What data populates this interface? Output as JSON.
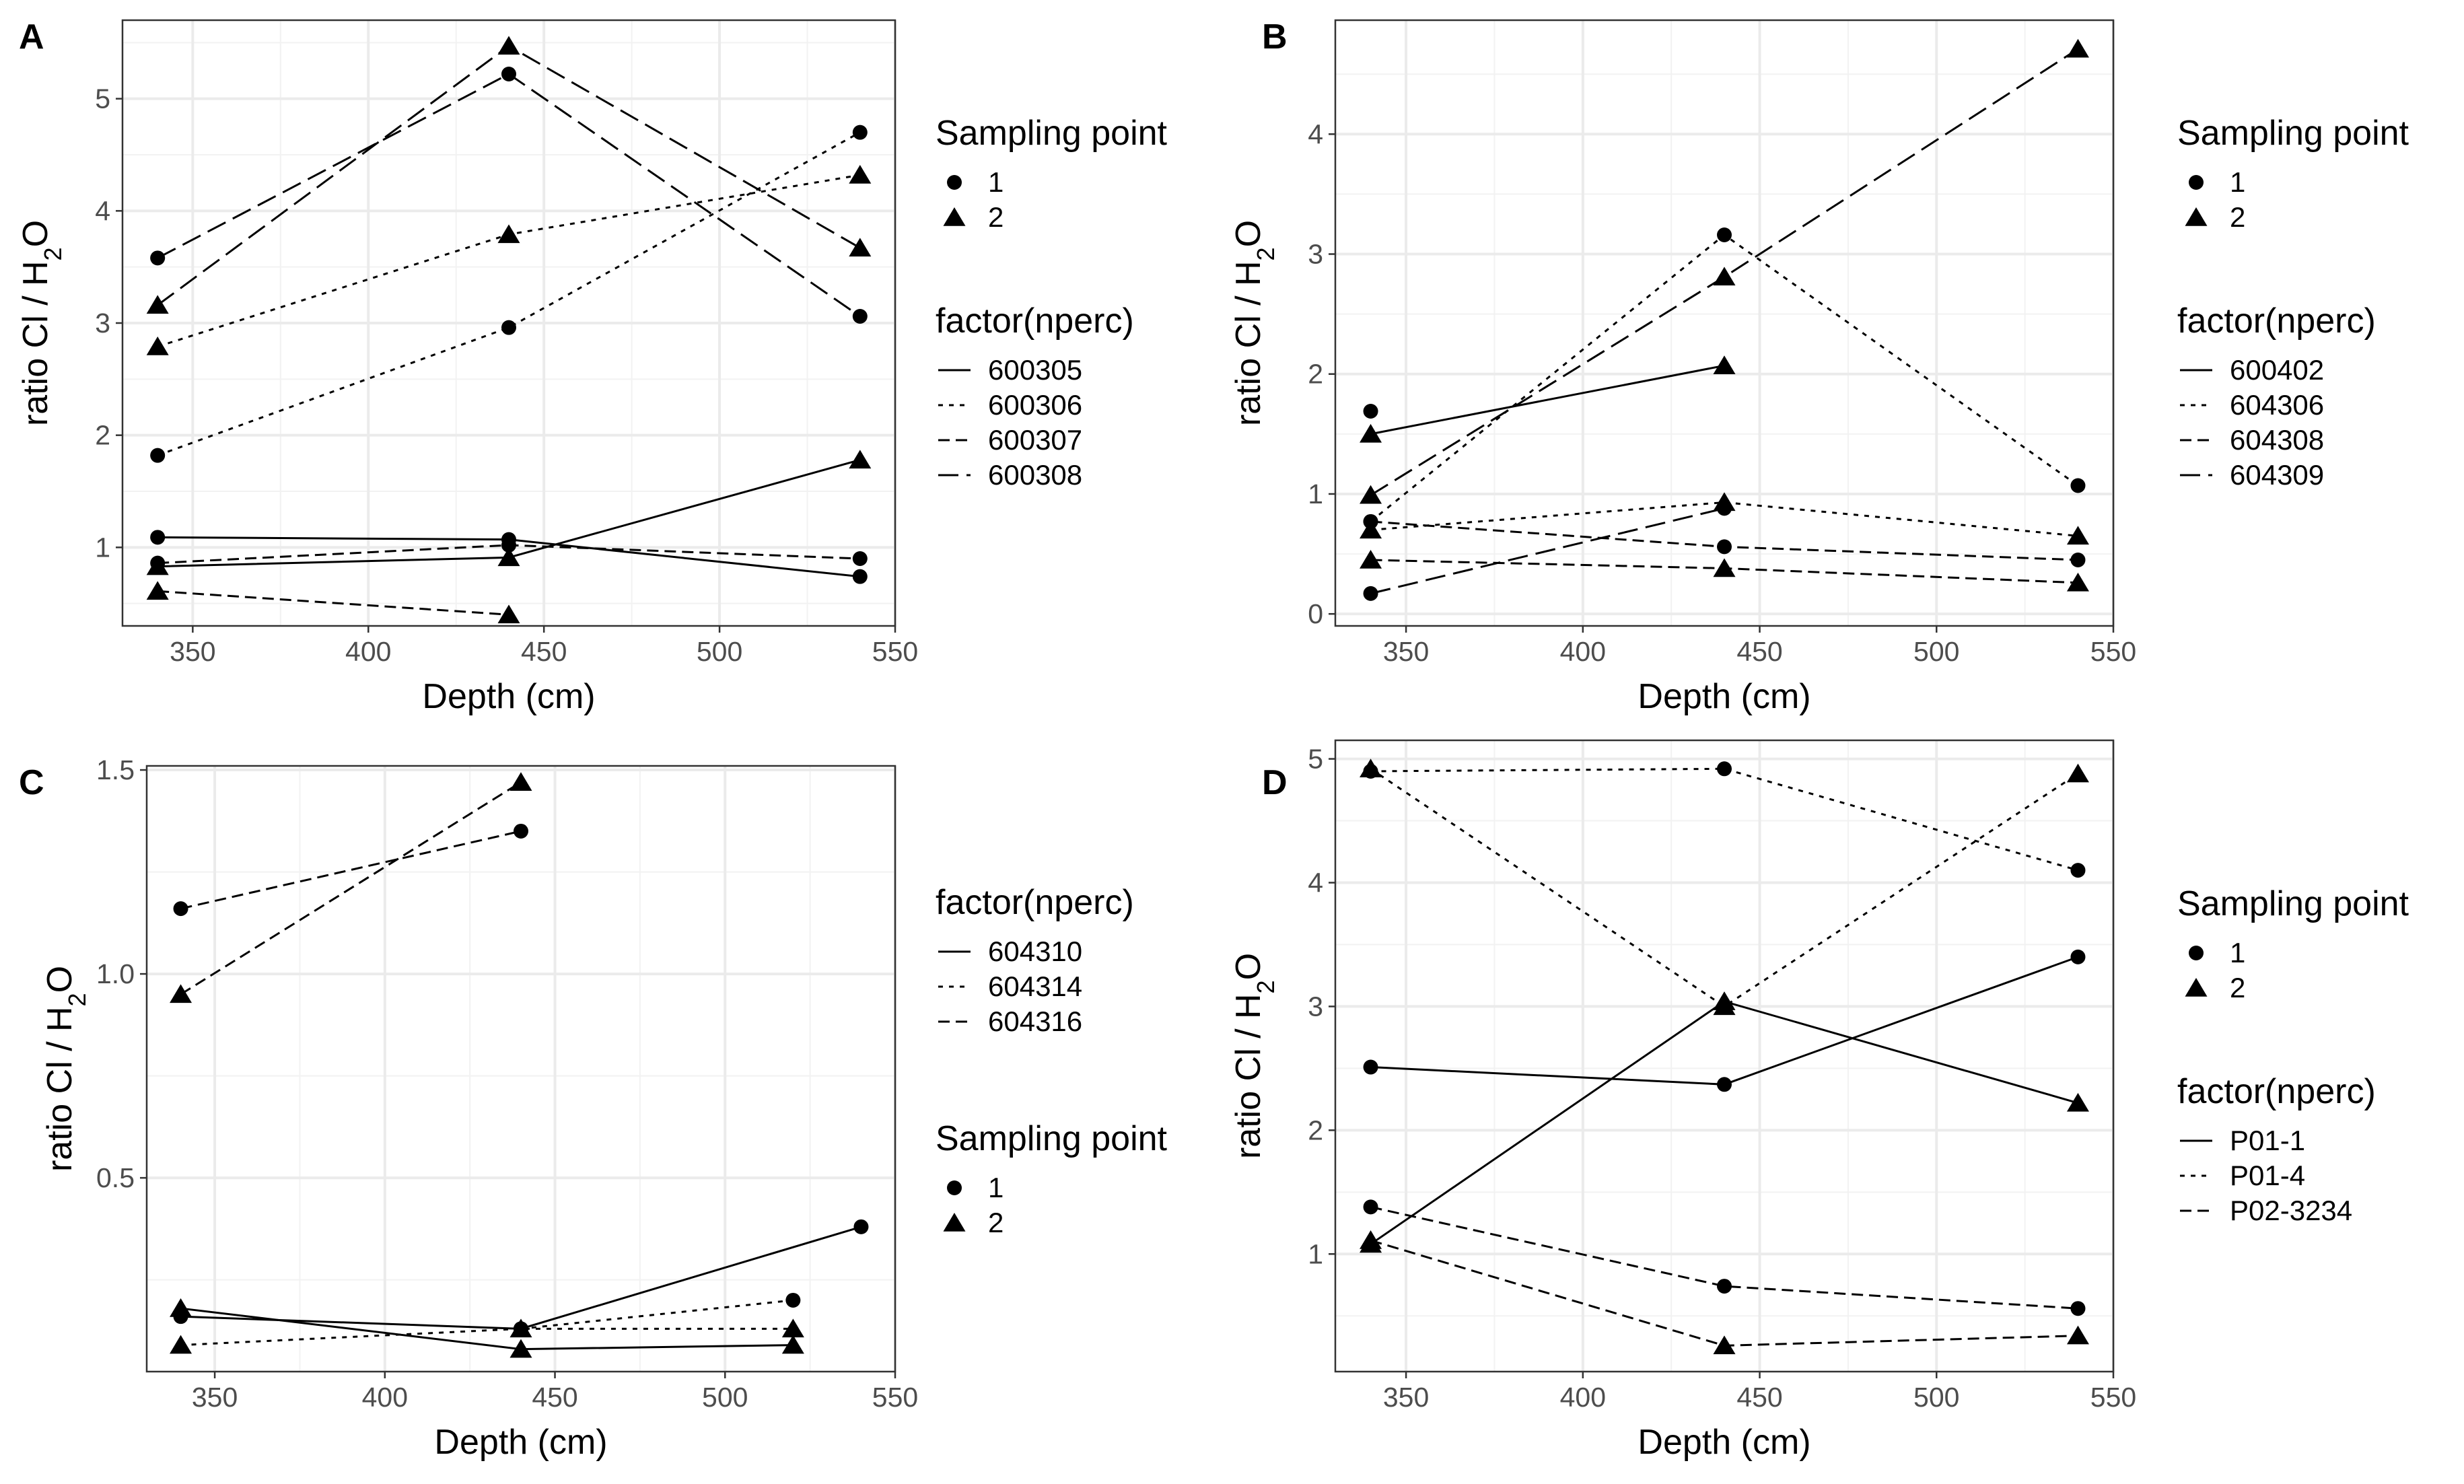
{
  "figure": {
    "panels": [
      "A",
      "B",
      "C",
      "D"
    ]
  },
  "chart_data": [
    {
      "panel": "A",
      "type": "line",
      "xlabel": "Depth (cm)",
      "ylabel_main": "ratio Cl / H",
      "ylabel_sub": "2",
      "ylabel_tail": "O",
      "xlim": [
        330,
        550
      ],
      "ylim": [
        0.3,
        5.7
      ],
      "xticks": [
        350,
        400,
        450,
        500,
        550
      ],
      "yticks": [
        1,
        2,
        3,
        4,
        5
      ],
      "grid": true,
      "legend_order": [
        "shape",
        "linetype"
      ],
      "shape_legend": {
        "title": "Sampling point",
        "entries": [
          "1",
          "2"
        ]
      },
      "linetype_legend": {
        "title": "factor(nperc)",
        "entries": [
          "600305",
          "600306",
          "600307",
          "600308"
        ]
      },
      "series": [
        {
          "factor": "600305",
          "point": "1",
          "x": [
            340,
            440,
            540
          ],
          "y": [
            1.09,
            1.07,
            0.74
          ]
        },
        {
          "factor": "600305",
          "point": "2",
          "x": [
            340,
            440,
            540
          ],
          "y": [
            0.83,
            0.91,
            1.78
          ]
        },
        {
          "factor": "600306",
          "point": "1",
          "x": [
            340,
            440,
            540
          ],
          "y": [
            1.82,
            2.96,
            4.7
          ]
        },
        {
          "factor": "600306",
          "point": "2",
          "x": [
            340,
            440,
            540
          ],
          "y": [
            2.79,
            3.79,
            4.32
          ]
        },
        {
          "factor": "600307",
          "point": "1",
          "x": [
            340,
            440,
            540
          ],
          "y": [
            0.86,
            1.02,
            0.9
          ]
        },
        {
          "factor": "600307",
          "point": "2",
          "x": [
            340,
            440
          ],
          "y": [
            0.61,
            0.4
          ]
        },
        {
          "factor": "600308",
          "point": "1",
          "x": [
            340,
            440,
            540
          ],
          "y": [
            3.58,
            5.22,
            3.06
          ]
        },
        {
          "factor": "600308",
          "point": "2",
          "x": [
            340,
            440,
            540
          ],
          "y": [
            3.16,
            5.47,
            3.67
          ]
        }
      ]
    },
    {
      "panel": "B",
      "type": "line",
      "xlabel": "Depth (cm)",
      "ylabel_main": "ratio Cl / H",
      "ylabel_sub": "2",
      "ylabel_tail": "O",
      "xlim": [
        330,
        550
      ],
      "ylim": [
        -0.1,
        4.95
      ],
      "xticks": [
        350,
        400,
        450,
        500,
        550
      ],
      "yticks": [
        0,
        1,
        2,
        3,
        4
      ],
      "grid": true,
      "legend_order": [
        "shape",
        "linetype"
      ],
      "shape_legend": {
        "title": "Sampling point",
        "entries": [
          "1",
          "2"
        ]
      },
      "linetype_legend": {
        "title": "factor(nperc)",
        "entries": [
          "600402",
          "604306",
          "604308",
          "604309"
        ]
      },
      "series": [
        {
          "factor": "600402",
          "point": "1",
          "x": [
            340
          ],
          "y": [
            1.69
          ]
        },
        {
          "factor": "600402",
          "point": "2",
          "x": [
            340,
            440
          ],
          "y": [
            1.5,
            2.07
          ]
        },
        {
          "factor": "604306",
          "point": "1",
          "x": [
            340,
            440,
            540
          ],
          "y": [
            0.77,
            3.16,
            1.07
          ]
        },
        {
          "factor": "604306",
          "point": "2",
          "x": [
            340,
            440,
            540
          ],
          "y": [
            0.7,
            0.93,
            0.65
          ]
        },
        {
          "factor": "604308",
          "point": "1",
          "x": [
            340,
            440,
            540
          ],
          "y": [
            0.77,
            0.56,
            0.45
          ]
        },
        {
          "factor": "604308",
          "point": "2",
          "x": [
            340,
            440,
            540
          ],
          "y": [
            0.45,
            0.38,
            0.26
          ]
        },
        {
          "factor": "604309",
          "point": "1",
          "x": [
            340,
            440
          ],
          "y": [
            0.17,
            0.88
          ]
        },
        {
          "factor": "604309",
          "point": "2",
          "x": [
            340,
            440,
            540
          ],
          "y": [
            0.99,
            2.81,
            4.71
          ]
        }
      ]
    },
    {
      "panel": "C",
      "type": "line",
      "xlabel": "Depth (cm)",
      "ylabel_main": "ratio Cl / H",
      "ylabel_sub": "2",
      "ylabel_tail": "O",
      "xlim": [
        330,
        550
      ],
      "ylim": [
        0.025,
        1.51
      ],
      "xticks": [
        350,
        400,
        450,
        500,
        550
      ],
      "yticks": [
        0.5,
        1.0,
        1.5
      ],
      "ytick_labels": [
        "0.5",
        "1.0",
        "1.5"
      ],
      "grid": true,
      "legend_order": [
        "linetype",
        "shape"
      ],
      "shape_legend": {
        "title": "Sampling point",
        "entries": [
          "1",
          "2"
        ]
      },
      "linetype_legend": {
        "title": "factor(nperc)",
        "entries": [
          "604310",
          "604314",
          "604316"
        ]
      },
      "series": [
        {
          "factor": "604310",
          "point": "1",
          "x": [
            340,
            440,
            540
          ],
          "y": [
            0.16,
            0.13,
            0.38
          ]
        },
        {
          "factor": "604310",
          "point": "2",
          "x": [
            340,
            440,
            520
          ],
          "y": [
            0.18,
            0.08,
            0.09
          ]
        },
        {
          "factor": "604314",
          "point": "1",
          "x": [
            440,
            520
          ],
          "y": [
            0.13,
            0.2
          ]
        },
        {
          "factor": "604314",
          "point": "2",
          "x": [
            340,
            440,
            520
          ],
          "y": [
            0.09,
            0.13,
            0.13
          ]
        },
        {
          "factor": "604316",
          "point": "1",
          "x": [
            340,
            440
          ],
          "y": [
            1.16,
            1.35
          ]
        },
        {
          "factor": "604316",
          "point": "2",
          "x": [
            340,
            440
          ],
          "y": [
            0.95,
            1.47
          ]
        }
      ]
    },
    {
      "panel": "D",
      "type": "line",
      "xlabel": "Depth (cm)",
      "ylabel_main": "ratio Cl / H",
      "ylabel_sub": "2",
      "ylabel_tail": "O",
      "xlim": [
        330,
        550
      ],
      "ylim": [
        0.05,
        5.15
      ],
      "xticks": [
        350,
        400,
        450,
        500,
        550
      ],
      "yticks": [
        1,
        2,
        3,
        4,
        5
      ],
      "grid": true,
      "legend_order": [
        "shape",
        "linetype"
      ],
      "shape_legend": {
        "title": "Sampling point",
        "entries": [
          "1",
          "2"
        ]
      },
      "linetype_legend": {
        "title": "factor(nperc)",
        "entries": [
          "P01-1",
          "P01-4",
          "P02-3234"
        ]
      },
      "series": [
        {
          "factor": "P01-1",
          "point": "1",
          "x": [
            340,
            440,
            540
          ],
          "y": [
            2.51,
            2.37,
            3.4
          ]
        },
        {
          "factor": "P01-1",
          "point": "2",
          "x": [
            340,
            440,
            540
          ],
          "y": [
            1.08,
            3.04,
            2.22
          ]
        },
        {
          "factor": "P01-4",
          "point": "1",
          "x": [
            340,
            440,
            540
          ],
          "y": [
            4.9,
            4.92,
            4.1
          ]
        },
        {
          "factor": "P01-4",
          "point": "2",
          "x": [
            340,
            440,
            540
          ],
          "y": [
            4.92,
            3.0,
            4.88
          ]
        },
        {
          "factor": "P02-3234",
          "point": "1",
          "x": [
            340,
            440,
            540
          ],
          "y": [
            1.38,
            0.74,
            0.56
          ]
        },
        {
          "factor": "P02-3234",
          "point": "2",
          "x": [
            340,
            440,
            540
          ],
          "y": [
            1.11,
            0.26,
            0.34
          ]
        }
      ]
    }
  ]
}
